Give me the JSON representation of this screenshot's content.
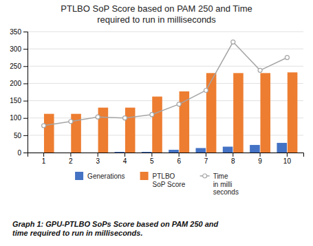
{
  "chart_data": {
    "type": "bar",
    "title": "PTLBO SoP Score based on PAM 250 and Time\nrequired to run in milliseconds",
    "categories": [
      1,
      2,
      3,
      4,
      5,
      6,
      7,
      8,
      9,
      10
    ],
    "series": [
      {
        "name": "Generations",
        "color": "#4472C4",
        "values": [
          0,
          0,
          0,
          2,
          2,
          8,
          13,
          17,
          22,
          28
        ]
      },
      {
        "name": "PTLBO\nSoP Score",
        "color": "#ED7D31",
        "values": [
          112,
          112,
          130,
          130,
          162,
          177,
          230,
          230,
          230,
          232
        ]
      },
      {
        "name": "Time\nin milli\nseconds",
        "type": "line",
        "color": "#A5A5A5",
        "marker": "circle",
        "values": [
          78,
          90,
          103,
          100,
          110,
          140,
          180,
          320,
          238,
          275
        ]
      }
    ],
    "ylim": [
      0,
      350
    ],
    "yticks": [
      0,
      50,
      100,
      150,
      200,
      250,
      300,
      350
    ],
    "grid": true,
    "legend": "bottom",
    "caption": "Graph 1: GPU-PTLBO SoPs Score based on PAM 250 and\ntime required to run in milliseconds."
  }
}
